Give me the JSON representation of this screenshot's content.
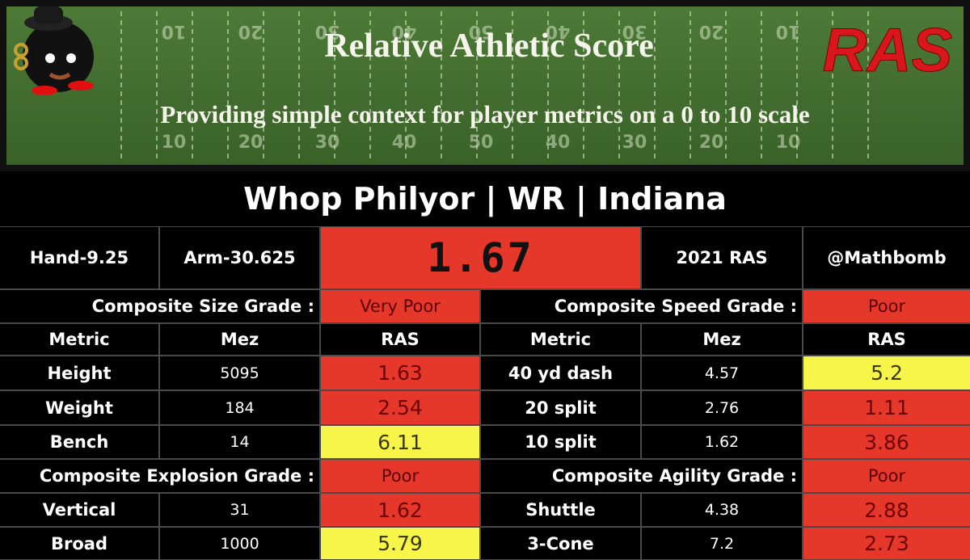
{
  "header": {
    "title": "Relative Athletic Score",
    "subtitle": "Providing simple context for player metrics on a 0 to 10 scale",
    "logo": "RAS",
    "yard_numbers": [
      "10",
      "20",
      "30",
      "40",
      "50",
      "40",
      "30",
      "20",
      "10"
    ]
  },
  "player": {
    "title": "Whop Philyor | WR | Indiana",
    "hand": "Hand-9.25",
    "arm": "Arm-30.625",
    "score": "1.67",
    "year_label": "2021 RAS",
    "handle": "@Mathbomb"
  },
  "grades": {
    "size": {
      "label": "Composite Size Grade :",
      "grade": "Very Poor"
    },
    "speed": {
      "label": "Composite Speed Grade :",
      "grade": "Poor"
    },
    "explosion": {
      "label": "Composite Explosion Grade :",
      "grade": "Poor"
    },
    "agility": {
      "label": "Composite Agility Grade :",
      "grade": "Poor"
    }
  },
  "columns": [
    "Metric",
    "Mez",
    "RAS"
  ],
  "rows": [
    [
      "Height",
      "5095",
      "1.63",
      "40 yd dash",
      "4.57",
      "5.2"
    ],
    [
      "Weight",
      "184",
      "2.54",
      "20 split",
      "2.76",
      "1.11"
    ],
    [
      "Bench",
      "14",
      "6.11",
      "10 split",
      "1.62",
      "3.86"
    ],
    [
      "Vertical",
      "31",
      "1.62",
      "Shuttle",
      "4.38",
      "2.88"
    ],
    [
      "Broad",
      "1000",
      "5.79",
      "3-Cone",
      "7.2",
      "2.73"
    ]
  ]
}
